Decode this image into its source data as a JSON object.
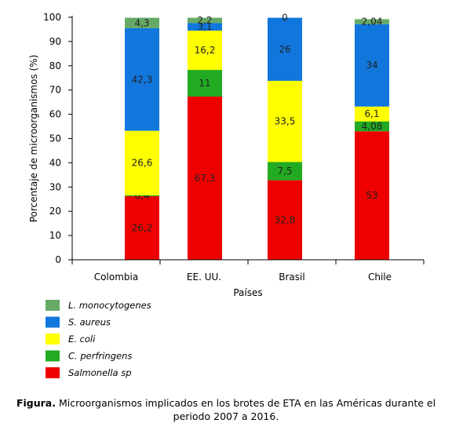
{
  "chart_data": {
    "type": "bar",
    "stacked": true,
    "categories": [
      "Colombia",
      "EE. UU.",
      "Brasil",
      "Chile"
    ],
    "series": [
      {
        "name": "Salmonella sp",
        "color": "#ee0000",
        "values": [
          26.2,
          67.3,
          32.8,
          53
        ]
      },
      {
        "name": "C. perfringens",
        "color": "#22aa22",
        "values": [
          0.4,
          11,
          7.5,
          4.08
        ]
      },
      {
        "name": "E. coli",
        "color": "#ffff00",
        "values": [
          26.6,
          16.2,
          33.5,
          6.1
        ]
      },
      {
        "name": "S. aureus",
        "color": "#1177dd",
        "values": [
          42.3,
          3.1,
          26,
          34
        ]
      },
      {
        "name": "L. monocytogenes",
        "color": "#66aa66",
        "values": [
          4.3,
          2.2,
          0,
          2.04
        ]
      }
    ],
    "data_labels": [
      [
        "26,2",
        "67,3",
        "32,8",
        "53"
      ],
      [
        "0,4",
        "11",
        "7,5",
        "4,08"
      ],
      [
        "26,6",
        "16,2",
        "33,5",
        "6,1"
      ],
      [
        "42,3",
        "3,1",
        "26",
        "34"
      ],
      [
        "4,3",
        "2,2",
        "0",
        "2,04"
      ]
    ],
    "xlabel": "Países",
    "ylabel": "Porcentaje de microorganismos (%)",
    "ylim": [
      0,
      100
    ],
    "yticks": [
      0,
      10,
      20,
      30,
      40,
      50,
      60,
      70,
      80,
      90,
      100
    ],
    "grid": false,
    "legend_position": "bottom-left"
  },
  "legend": [
    {
      "label": "L. monocytogenes",
      "color": "#66aa66"
    },
    {
      "label": "S. aureus",
      "color": "#1177dd"
    },
    {
      "label": "E. coli",
      "color": "#ffff00"
    },
    {
      "label": "C. perfringens",
      "color": "#22aa22"
    },
    {
      "label": "Salmonella sp",
      "color": "#ee0000"
    }
  ],
  "caption": {
    "label": "Figura.",
    "text": " Microorganismos implicados en los brotes de ETA en las Américas durante el periodo 2007 a 2016."
  }
}
